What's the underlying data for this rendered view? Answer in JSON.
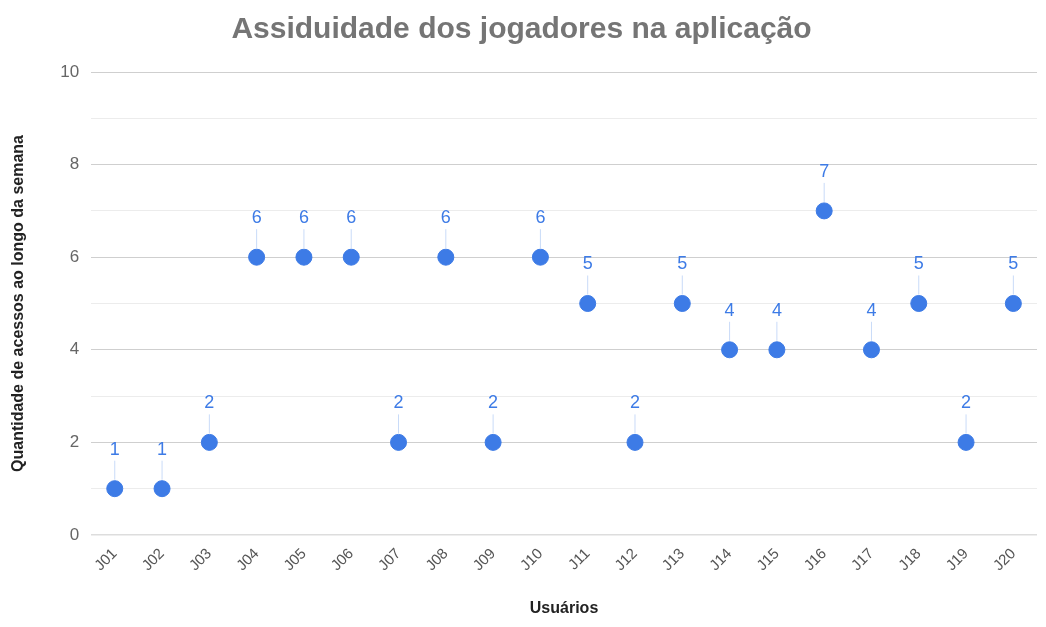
{
  "chart_data": {
    "type": "scatter",
    "title": "Assiduidade dos jogadores na aplicação",
    "xlabel": "Usuários",
    "ylabel": "Quantidade de acessos ao longo da semana",
    "categories": [
      "J01",
      "J02",
      "J03",
      "J04",
      "J05",
      "J06",
      "J07",
      "J08",
      "J09",
      "J10",
      "J11",
      "J12",
      "J13",
      "J14",
      "J15",
      "J16",
      "J17",
      "J18",
      "J19",
      "J20"
    ],
    "values": [
      1,
      1,
      2,
      6,
      6,
      6,
      2,
      6,
      2,
      6,
      5,
      2,
      5,
      4,
      4,
      7,
      4,
      5,
      2,
      5
    ],
    "color": "#3d7be6",
    "ylim": [
      0,
      10
    ],
    "yticks": [
      0,
      {
        "value": 1,
        "label": null
      },
      2,
      {
        "value": 3,
        "label": null
      },
      4,
      {
        "value": 5,
        "label": null
      },
      6,
      {
        "value": 7,
        "label": null
      },
      8,
      {
        "value": 9,
        "label": null
      },
      10
    ],
    "grid": "y",
    "marker": "circle",
    "data_labels": true,
    "legend": false
  }
}
